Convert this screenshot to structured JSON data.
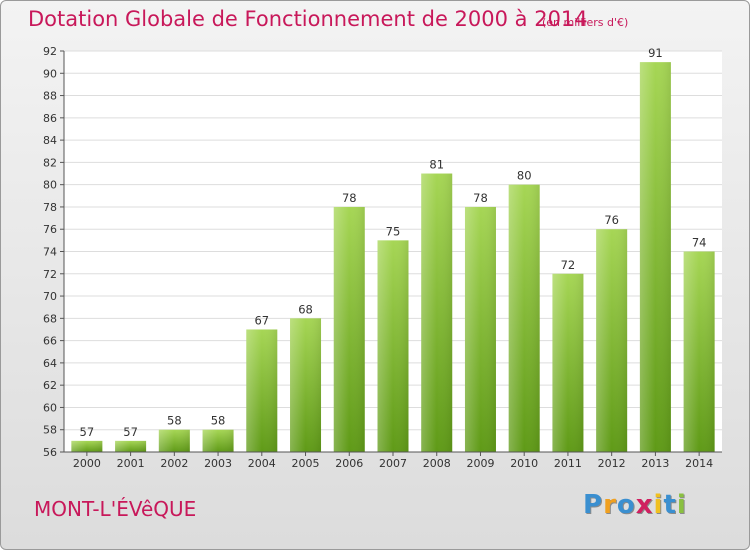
{
  "header": {
    "title": "Dotation Globale de Fonctionnement de 2000 à 2014",
    "subtitle": "(en milliers d'€)"
  },
  "footer": {
    "commune": "MONT-L'ÉVêQUE",
    "logo": {
      "letters": [
        "P",
        "r",
        "o",
        "x",
        "i",
        "t",
        "i"
      ],
      "colors": [
        "#3a8fd0",
        "#f0a020",
        "#3a8fd0",
        "#d02060",
        "#f0c020",
        "#3a8fd0",
        "#8ac040"
      ]
    }
  },
  "chart_data": {
    "type": "bar",
    "categories": [
      "2000",
      "2001",
      "2002",
      "2003",
      "2004",
      "2005",
      "2006",
      "2007",
      "2008",
      "2009",
      "2010",
      "2011",
      "2012",
      "2013",
      "2014"
    ],
    "values": [
      57,
      57,
      58,
      58,
      67,
      68,
      78,
      75,
      81,
      78,
      80,
      72,
      76,
      91,
      74
    ],
    "ylim": [
      56,
      92
    ],
    "ytick_step": 2,
    "grid": true,
    "bar_color": "#7fbf2f"
  }
}
